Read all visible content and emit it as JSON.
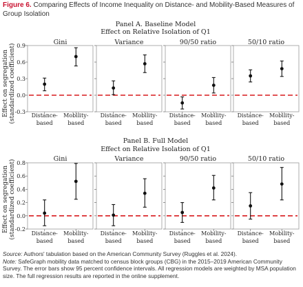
{
  "figure": {
    "label": "Figure 6.",
    "title": "Comparing Effects of Income Inequality on Distance- and Mobility-Based Measures of Group Isolation"
  },
  "notes": {
    "source_label": "Source:",
    "source_text": "Authors' tabulation based on the American Community Survey (Ruggles et al. 2024).",
    "note_label": "Note:",
    "note_text": "SafeGraph mobility data matched to census block groups (CBG) in the 2015–2019 American Community Survey. The error bars show 95 percent confidence intervals. All regression models are weighted by MSA population size. The full regression results are reported in the online supplement."
  },
  "colors": {
    "reference_line": "#d7191c",
    "marker": "#111111"
  },
  "chart_data": [
    {
      "type": "scatter",
      "title": "Panel A. Baseline Model",
      "subtitle": "Effect on Relative Isolation of Q1",
      "ylabel": "Effect on segregation (standardized coefficient)",
      "ylim": [
        -0.3,
        0.9
      ],
      "yticks": [
        "-0.3",
        "0.0",
        "0.3",
        "0.6",
        "0.9"
      ],
      "tick_values": [
        -0.3,
        0,
        0.3,
        0.6,
        0.9
      ],
      "reference_line": 0,
      "categories": [
        "Distance-based",
        "Mobility-based"
      ],
      "facets": [
        {
          "title": "Gini",
          "estimates": [
            0.2,
            0.7
          ],
          "ci_low": [
            0.08,
            0.53
          ],
          "ci_high": [
            0.31,
            0.86
          ]
        },
        {
          "title": "Variance",
          "estimates": [
            0.13,
            0.57
          ],
          "ci_low": [
            0.01,
            0.41
          ],
          "ci_high": [
            0.26,
            0.73
          ]
        },
        {
          "title": "90/50 ratio",
          "estimates": [
            -0.14,
            0.18
          ],
          "ci_low": [
            -0.25,
            0.04
          ],
          "ci_high": [
            -0.03,
            0.32
          ]
        },
        {
          "title": "50/10 ratio",
          "estimates": [
            0.35,
            0.48
          ],
          "ci_low": [
            0.24,
            0.34
          ],
          "ci_high": [
            0.46,
            0.62
          ]
        }
      ]
    },
    {
      "type": "scatter",
      "title": "Panel B. Full Model",
      "subtitle": "Effect on Relative Isolation of Q1",
      "ylabel": "Effect on segregation (standardized coefficient)",
      "ylim": [
        -0.2,
        0.8
      ],
      "yticks": [
        "-0.2",
        "0.0",
        "0.2",
        "0.4",
        "0.6",
        "0.8"
      ],
      "tick_values": [
        -0.2,
        0,
        0.2,
        0.4,
        0.6,
        0.8
      ],
      "reference_line": 0,
      "categories": [
        "Distance-based",
        "Mobility-based"
      ],
      "facets": [
        {
          "title": "Gini",
          "estimates": [
            0.04,
            0.52
          ],
          "ci_low": [
            -0.15,
            0.25
          ],
          "ci_high": [
            0.24,
            0.79
          ]
        },
        {
          "title": "Variance",
          "estimates": [
            0.01,
            0.34
          ],
          "ci_low": [
            -0.15,
            0.13
          ],
          "ci_high": [
            0.17,
            0.56
          ]
        },
        {
          "title": "90/50 ratio",
          "estimates": [
            0.05,
            0.42
          ],
          "ci_low": [
            -0.1,
            0.24
          ],
          "ci_high": [
            0.2,
            0.61
          ]
        },
        {
          "title": "50/10 ratio",
          "estimates": [
            0.15,
            0.48
          ],
          "ci_low": [
            -0.05,
            0.24
          ],
          "ci_high": [
            0.35,
            0.73
          ]
        }
      ]
    }
  ]
}
